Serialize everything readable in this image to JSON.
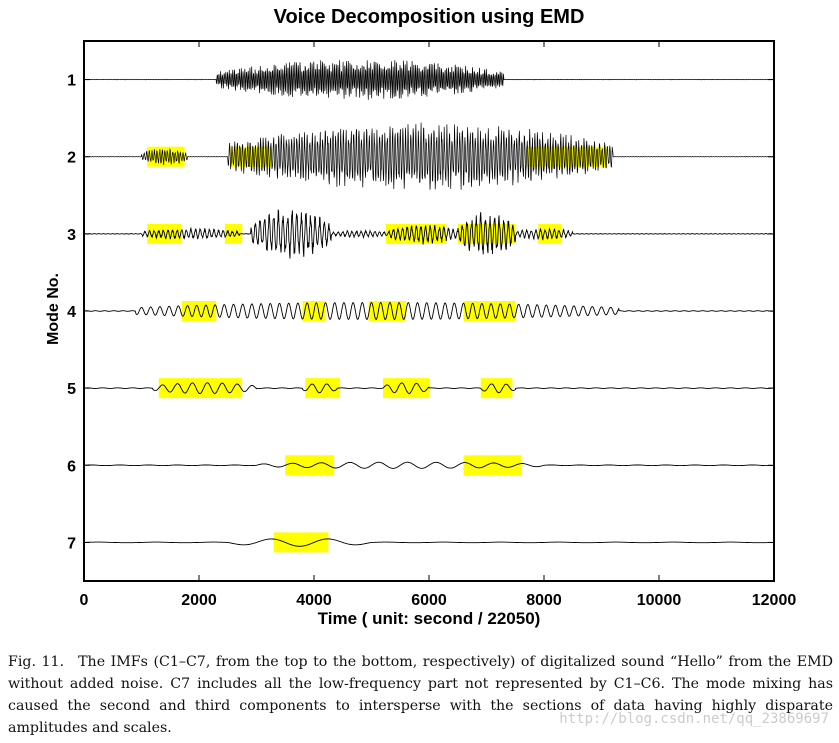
{
  "figure": {
    "title": "Voice Decomposition using EMD",
    "caption_label": "Fig. 11.",
    "caption_text": "The IMFs (C1–C7, from the top to the bottom, respectively) of digitalized sound “Hello” from the EMD without added noise. C7 includes all the low-frequency part not represented by C1–C6. The mode mixing has caused the second and third components to intersperse with the sections of data having highly disparate amplitudes and scales.",
    "watermark": "http://blog.csdn.net/qq_23869697"
  },
  "chart_data": {
    "type": "line",
    "title": "Voice Decomposition using EMD",
    "xlabel": "Time ( unit: second / 22050)",
    "ylabel": "Mode No.",
    "xlim": [
      0,
      12000
    ],
    "ylim": [
      7.5,
      0.5
    ],
    "x_ticks": [
      0,
      2000,
      4000,
      6000,
      8000,
      10000,
      12000
    ],
    "x_tick_labels": [
      "0",
      "2000",
      "4000",
      "6000",
      "8000",
      "10000",
      "12000"
    ],
    "y_ticks": [
      1,
      2,
      3,
      4,
      5,
      6,
      7
    ],
    "y_tick_labels": [
      "1",
      "2",
      "3",
      "4",
      "5",
      "6",
      "7"
    ],
    "grid": false,
    "line_color": "#000000",
    "highlight_color": "#ffff00",
    "series": [
      {
        "mode": 1,
        "bursts": [
          [
            2300,
            7300,
            0.28
          ]
        ],
        "cycle_samples": 30
      },
      {
        "mode": 2,
        "bursts": [
          [
            1000,
            1800,
            0.12
          ],
          [
            2500,
            9200,
            0.45
          ]
        ],
        "cycle_samples": 45
      },
      {
        "mode": 3,
        "bursts": [
          [
            1000,
            2700,
            0.08
          ],
          [
            2900,
            4300,
            0.34
          ],
          [
            4300,
            5300,
            0.05
          ],
          [
            5300,
            6500,
            0.14
          ],
          [
            6500,
            7500,
            0.3
          ],
          [
            7500,
            8500,
            0.08
          ]
        ],
        "cycle_samples": 80
      },
      {
        "mode": 4,
        "bursts": [
          [
            900,
            9300,
            0.11
          ]
        ],
        "cycle_samples": 160
      },
      {
        "mode": 5,
        "bursts": [
          [
            1200,
            3000,
            0.07
          ],
          [
            3800,
            4400,
            0.06
          ],
          [
            5200,
            6000,
            0.07
          ],
          [
            6900,
            7500,
            0.06
          ]
        ],
        "cycle_samples": 260
      },
      {
        "mode": 6,
        "bursts": [
          [
            3000,
            8000,
            0.04
          ]
        ],
        "cycle_samples": 500
      },
      {
        "mode": 7,
        "bursts": [
          [
            2500,
            5000,
            0.05
          ]
        ],
        "cycle_samples": 1000
      }
    ],
    "highlights": [
      {
        "mode": 2,
        "x": [
          1100,
          1750
        ]
      },
      {
        "mode": 2,
        "x": [
          2550,
          3250
        ]
      },
      {
        "mode": 2,
        "x": [
          7700,
          9100
        ]
      },
      {
        "mode": 3,
        "x": [
          1100,
          1700
        ]
      },
      {
        "mode": 3,
        "x": [
          2450,
          2750
        ]
      },
      {
        "mode": 3,
        "x": [
          5250,
          6300
        ]
      },
      {
        "mode": 3,
        "x": [
          6500,
          7500
        ]
      },
      {
        "mode": 3,
        "x": [
          7900,
          8300
        ]
      },
      {
        "mode": 4,
        "x": [
          1700,
          2300
        ]
      },
      {
        "mode": 4,
        "x": [
          3800,
          4200
        ]
      },
      {
        "mode": 4,
        "x": [
          4950,
          5600
        ]
      },
      {
        "mode": 4,
        "x": [
          6600,
          7500
        ]
      },
      {
        "mode": 5,
        "x": [
          1300,
          2750
        ]
      },
      {
        "mode": 5,
        "x": [
          3850,
          4450
        ]
      },
      {
        "mode": 5,
        "x": [
          5200,
          6000
        ]
      },
      {
        "mode": 5,
        "x": [
          6900,
          7450
        ]
      },
      {
        "mode": 6,
        "x": [
          3500,
          4350
        ]
      },
      {
        "mode": 6,
        "x": [
          6600,
          7600
        ]
      },
      {
        "mode": 7,
        "x": [
          3300,
          4250
        ]
      }
    ]
  }
}
